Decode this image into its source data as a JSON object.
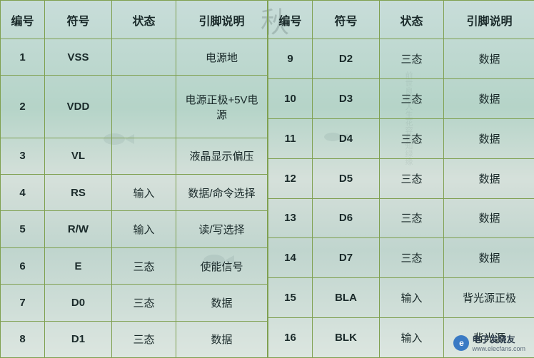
{
  "headers": {
    "number": "编号",
    "symbol": "符号",
    "status": "状态",
    "description": "引脚说明"
  },
  "left_table": {
    "rows": [
      {
        "num": "1",
        "sym": "VSS",
        "status": "",
        "desc": "电源地"
      },
      {
        "num": "2",
        "sym": "VDD",
        "status": "",
        "desc": "电源正极+5V电源"
      },
      {
        "num": "3",
        "sym": "VL",
        "status": "",
        "desc": "液晶显示偏压"
      },
      {
        "num": "4",
        "sym": "RS",
        "status": "输入",
        "desc": "数据/命令选择"
      },
      {
        "num": "5",
        "sym": "R/W",
        "status": "输入",
        "desc": "读/写选择"
      },
      {
        "num": "6",
        "sym": "E",
        "status": "三态",
        "desc": "使能信号"
      },
      {
        "num": "7",
        "sym": "D0",
        "status": "三态",
        "desc": "数据"
      },
      {
        "num": "8",
        "sym": "D1",
        "status": "三态",
        "desc": "数据"
      }
    ]
  },
  "right_table": {
    "rows": [
      {
        "num": "9",
        "sym": "D2",
        "status": "三态",
        "desc": "数据"
      },
      {
        "num": "10",
        "sym": "D3",
        "status": "三态",
        "desc": "数据"
      },
      {
        "num": "11",
        "sym": "D4",
        "status": "三态",
        "desc": "数据"
      },
      {
        "num": "12",
        "sym": "D5",
        "status": "三态",
        "desc": "数据"
      },
      {
        "num": "13",
        "sym": "D6",
        "status": "三态",
        "desc": "数据"
      },
      {
        "num": "14",
        "sym": "D7",
        "status": "三态",
        "desc": "数据"
      },
      {
        "num": "15",
        "sym": "BLA",
        "status": "输入",
        "desc": "背光源正极"
      },
      {
        "num": "16",
        "sym": "BLK",
        "status": "输入",
        "desc": "背光源"
      }
    ]
  },
  "watermark": {
    "main": "电子发烧友",
    "sub": "www.elecfans.com"
  },
  "styling": {
    "border_color": "#7fa050",
    "text_color": "#1a2a2a",
    "header_fontsize": 16,
    "cell_fontsize": 15
  }
}
